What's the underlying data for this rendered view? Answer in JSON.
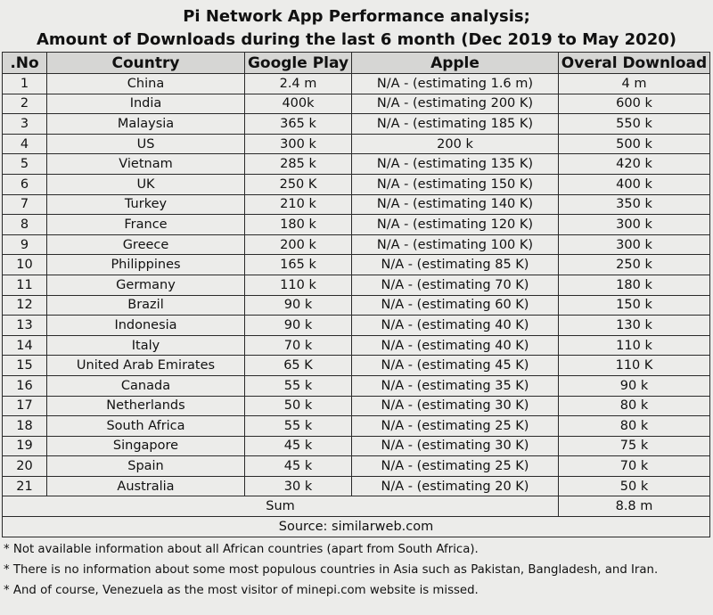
{
  "title": {
    "line1": "Pi Network App Performance analysis;",
    "line2": "Amount of Downloads during the last 6 month (Dec 2019 to May 2020)"
  },
  "table": {
    "headers": [
      ".No",
      "Country",
      "Google Play",
      "Apple",
      "Overal Download"
    ],
    "rows": [
      [
        "1",
        "China",
        "2.4 m",
        "N/A - (estimating 1.6 m)",
        "4 m"
      ],
      [
        "2",
        "India",
        "400k",
        "N/A - (estimating 200 K)",
        "600 k"
      ],
      [
        "3",
        "Malaysia",
        "365 k",
        "N/A - (estimating 185 K)",
        "550 k"
      ],
      [
        "4",
        "US",
        "300 k",
        "200 k",
        "500 k"
      ],
      [
        "5",
        "Vietnam",
        "285 k",
        "N/A - (estimating 135 K)",
        "420 k"
      ],
      [
        "6",
        "UK",
        "250 K",
        "N/A - (estimating 150 K)",
        "400 k"
      ],
      [
        "7",
        "Turkey",
        "210 k",
        "N/A - (estimating 140 K)",
        "350 k"
      ],
      [
        "8",
        "France",
        "180 k",
        "N/A - (estimating 120 K)",
        "300 k"
      ],
      [
        "9",
        "Greece",
        "200 k",
        "N/A - (estimating 100 K)",
        "300 k"
      ],
      [
        "10",
        "Philippines",
        "165 k",
        "N/A - (estimating 85 K)",
        "250 k"
      ],
      [
        "11",
        "Germany",
        "110 k",
        "N/A - (estimating 70 K)",
        "180 k"
      ],
      [
        "12",
        "Brazil",
        "90 k",
        "N/A - (estimating 60 K)",
        "150 k"
      ],
      [
        "13",
        "Indonesia",
        "90 k",
        "N/A - (estimating 40 K)",
        "130 k"
      ],
      [
        "14",
        "Italy",
        "70 k",
        "N/A - (estimating 40 K)",
        "110 k"
      ],
      [
        "15",
        "United Arab Emirates",
        "65 K",
        "N/A - (estimating 45 K)",
        "110 K"
      ],
      [
        "16",
        "Canada",
        "55 k",
        "N/A - (estimating 35 K)",
        "90 k"
      ],
      [
        "17",
        "Netherlands",
        "50 k",
        "N/A - (estimating 30 K)",
        "80 k"
      ],
      [
        "18",
        "South Africa",
        "55 k",
        "N/A - (estimating 25 K)",
        "80 k"
      ],
      [
        "19",
        "Singapore",
        "45 k",
        "N/A - (estimating 30 K)",
        "75 k"
      ],
      [
        "20",
        "Spain",
        "45 k",
        "N/A - (estimating 25 K)",
        "70 k"
      ],
      [
        "21",
        "Australia",
        "30 k",
        "N/A - (estimating 20 K)",
        "50 k"
      ]
    ],
    "sum_label": "Sum",
    "sum_value": "8.8 m",
    "source": "Source:  similarweb.com"
  },
  "notes": [
    "* Not available information about all African countries (apart from South Africa).",
    "* There is no information about some most populous countries in Asia such as Pakistan, Bangladesh, and Iran.",
    "* And of course, Venezuela as the most visitor of minepi.com website is missed."
  ]
}
